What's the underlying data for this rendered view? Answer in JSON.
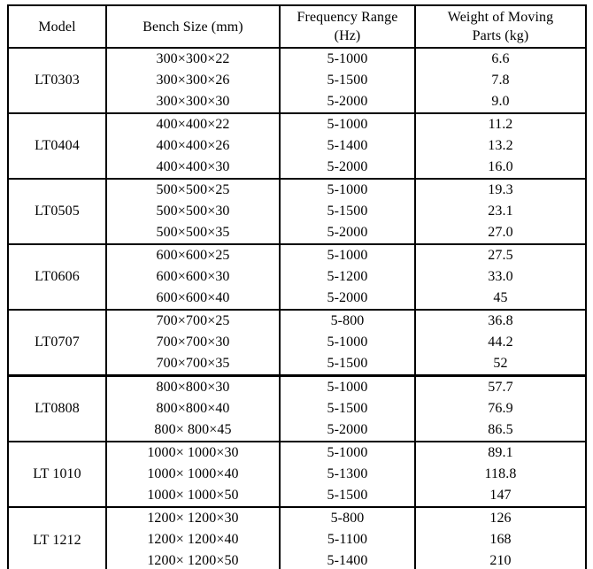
{
  "table": {
    "headers": [
      "Model",
      "Bench Size (mm)",
      "Frequency Range (Hz)",
      "Weight of Moving Parts (kg)"
    ],
    "groups": [
      {
        "model": "LT0303",
        "rows": [
          {
            "size": "300×300×22",
            "freq": "5-1000",
            "weight": "6.6"
          },
          {
            "size": "300×300×26",
            "freq": "5-1500",
            "weight": "7.8"
          },
          {
            "size": "300×300×30",
            "freq": "5-2000",
            "weight": "9.0"
          }
        ]
      },
      {
        "model": "LT0404",
        "rows": [
          {
            "size": "400×400×22",
            "freq": "5-1000",
            "weight": "11.2"
          },
          {
            "size": "400×400×26",
            "freq": "5-1400",
            "weight": "13.2"
          },
          {
            "size": "400×400×30",
            "freq": "5-2000",
            "weight": "16.0"
          }
        ]
      },
      {
        "model": "LT0505",
        "rows": [
          {
            "size": "500×500×25",
            "freq": "5-1000",
            "weight": "19.3"
          },
          {
            "size": "500×500×30",
            "freq": "5-1500",
            "weight": "23.1"
          },
          {
            "size": "500×500×35",
            "freq": "5-2000",
            "weight": "27.0"
          }
        ]
      },
      {
        "model": "LT0606",
        "rows": [
          {
            "size": "600×600×25",
            "freq": "5-1000",
            "weight": "27.5"
          },
          {
            "size": "600×600×30",
            "freq": "5-1200",
            "weight": "33.0"
          },
          {
            "size": "600×600×40",
            "freq": "5-2000",
            "weight": "45"
          }
        ]
      },
      {
        "model": "LT0707",
        "rows": [
          {
            "size": "700×700×25",
            "freq": "5-800",
            "weight": "36.8"
          },
          {
            "size": "700×700×30",
            "freq": "5-1000",
            "weight": "44.2"
          },
          {
            "size": "700×700×35",
            "freq": "5-1500",
            "weight": "52"
          }
        ]
      },
      {
        "model": "LT0808",
        "rows": [
          {
            "size": "800×800×30",
            "freq": "5-1000",
            "weight": "57.7"
          },
          {
            "size": "800×800×40",
            "freq": "5-1500",
            "weight": "76.9"
          },
          {
            "size": "800× 800×45",
            "freq": "5-2000",
            "weight": "86.5"
          }
        ]
      },
      {
        "model": "LT 1010",
        "rows": [
          {
            "size": "1000× 1000×30",
            "freq": "5-1000",
            "weight": "89.1"
          },
          {
            "size": "1000× 1000×40",
            "freq": "5-1300",
            "weight": "118.8"
          },
          {
            "size": "1000× 1000×50",
            "freq": "5-1500",
            "weight": "147"
          }
        ]
      },
      {
        "model": "LT 1212",
        "rows": [
          {
            "size": "1200× 1200×30",
            "freq": "5-800",
            "weight": "126"
          },
          {
            "size": "1200× 1200×40",
            "freq": "5-1100",
            "weight": "168"
          },
          {
            "size": "1200× 1200×50",
            "freq": "5-1400",
            "weight": "210"
          }
        ]
      }
    ]
  }
}
